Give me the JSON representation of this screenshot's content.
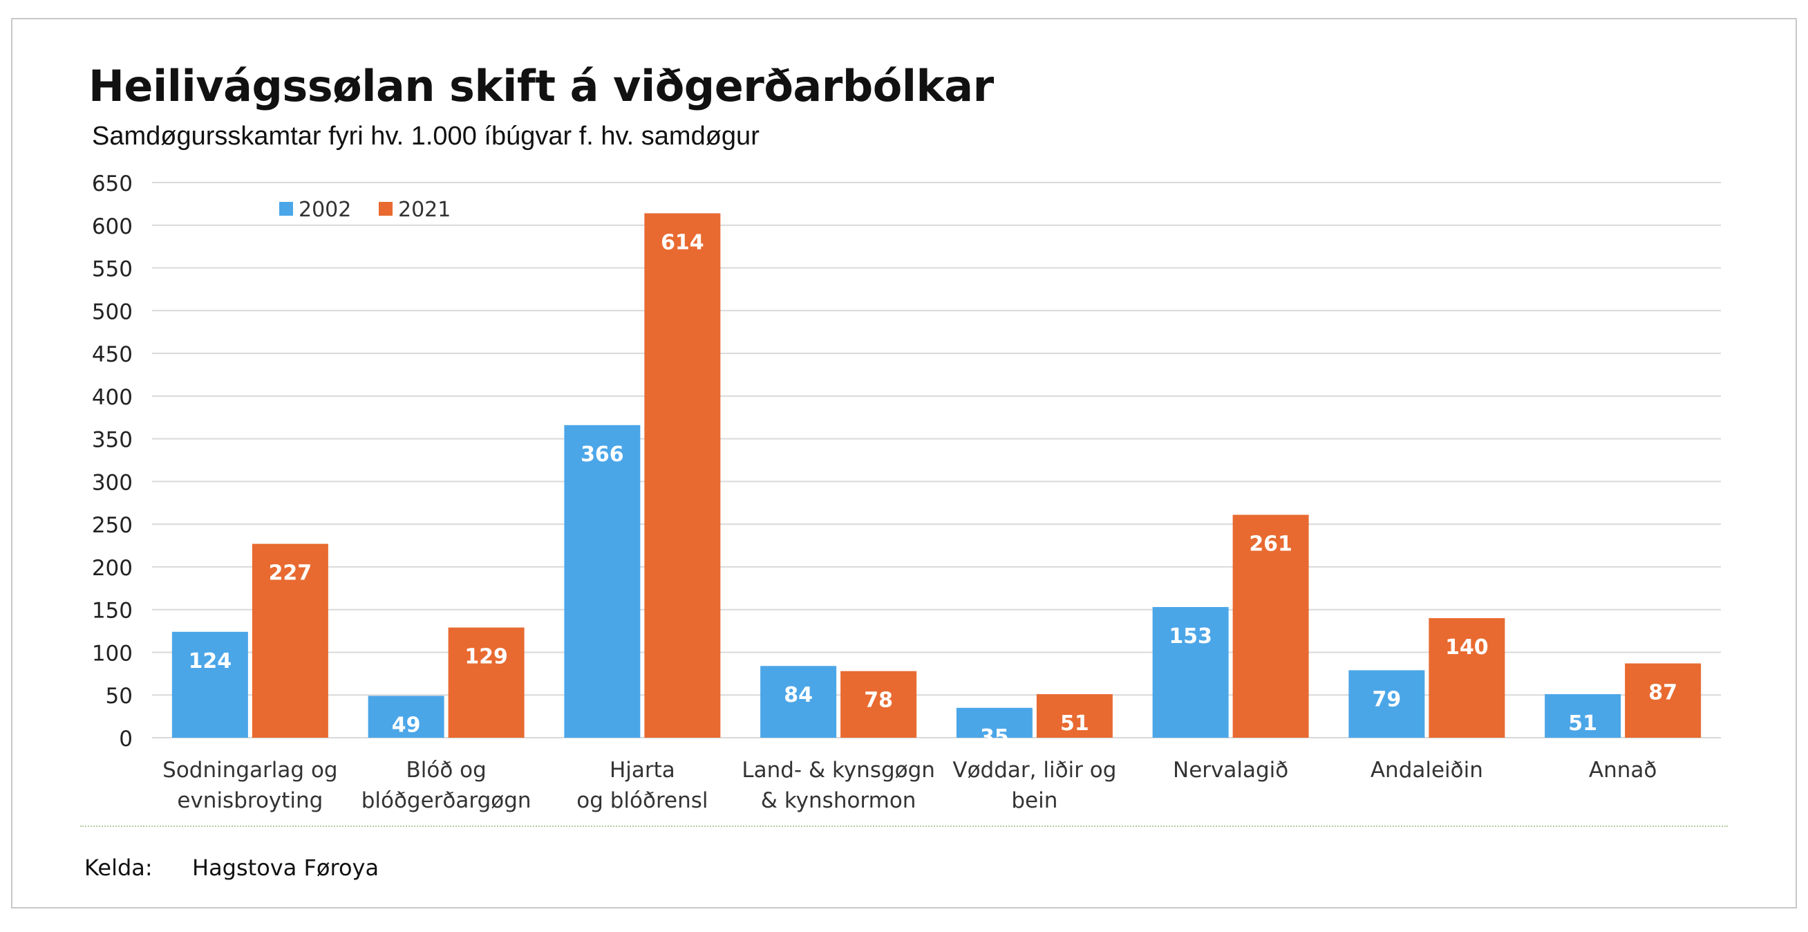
{
  "chart_data": {
    "type": "bar",
    "title": "Heilivágssølan skift á viðgerðarbólkar",
    "subtitle": "Samdøgursskamtar fyri hv. 1.000 íbúgvar f. hv. samdøgur",
    "categories": [
      [
        "Sodningarlag og",
        "evnisbroyting"
      ],
      [
        "Blóð og",
        "blóðgerðargøgn"
      ],
      [
        "Hjarta",
        "og blóðrensl"
      ],
      [
        "Land- & kynsgøgn",
        "& kynshormon"
      ],
      [
        "Vøddar, liðir og",
        "bein"
      ],
      [
        "Nervalagið"
      ],
      [
        "Andaleiðin"
      ],
      [
        "Annað"
      ]
    ],
    "series": [
      {
        "name": "2002",
        "color": "#4BA6E8",
        "values": [
          124,
          49,
          366,
          84,
          35,
          153,
          79,
          51
        ]
      },
      {
        "name": "2021",
        "color": "#E86A30",
        "values": [
          227,
          129,
          614,
          78,
          51,
          261,
          140,
          87
        ]
      }
    ],
    "ylim": [
      0,
      650
    ],
    "yticks": [
      0,
      50,
      100,
      150,
      200,
      250,
      300,
      350,
      400,
      450,
      500,
      550,
      600,
      650
    ],
    "grid": true,
    "legend": "top-left"
  },
  "footer": {
    "source_label": "Kelda:",
    "source_value": "Hagstova Føroya"
  }
}
